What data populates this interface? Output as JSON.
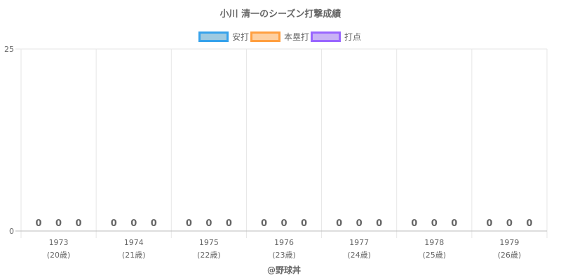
{
  "chart_data": {
    "type": "bar",
    "title": "小川 清一のシーズン打撃成績",
    "categories": [
      [
        "1973",
        "(20歳)"
      ],
      [
        "1974",
        "(21歳)"
      ],
      [
        "1975",
        "(22歳)"
      ],
      [
        "1976",
        "(23歳)"
      ],
      [
        "1977",
        "(24歳)"
      ],
      [
        "1978",
        "(25歳)"
      ],
      [
        "1979",
        "(26歳)"
      ]
    ],
    "series": [
      {
        "name": "安打",
        "values": [
          0,
          0,
          0,
          0,
          0,
          0,
          0
        ],
        "fill": "#9ecae1",
        "stroke": "#36a2eb"
      },
      {
        "name": "本塁打",
        "values": [
          0,
          0,
          0,
          0,
          0,
          0,
          0
        ],
        "fill": "#fdd0a2",
        "stroke": "#ff9f40"
      },
      {
        "name": "打点",
        "values": [
          0,
          0,
          0,
          0,
          0,
          0,
          0
        ],
        "fill": "#c9b3f5",
        "stroke": "#9966ff"
      }
    ],
    "ylim": [
      0,
      25
    ],
    "yticks": [
      "0",
      "25"
    ],
    "xlabel": "@野球丼",
    "ylabel": "",
    "grid": true,
    "legend": "top"
  }
}
